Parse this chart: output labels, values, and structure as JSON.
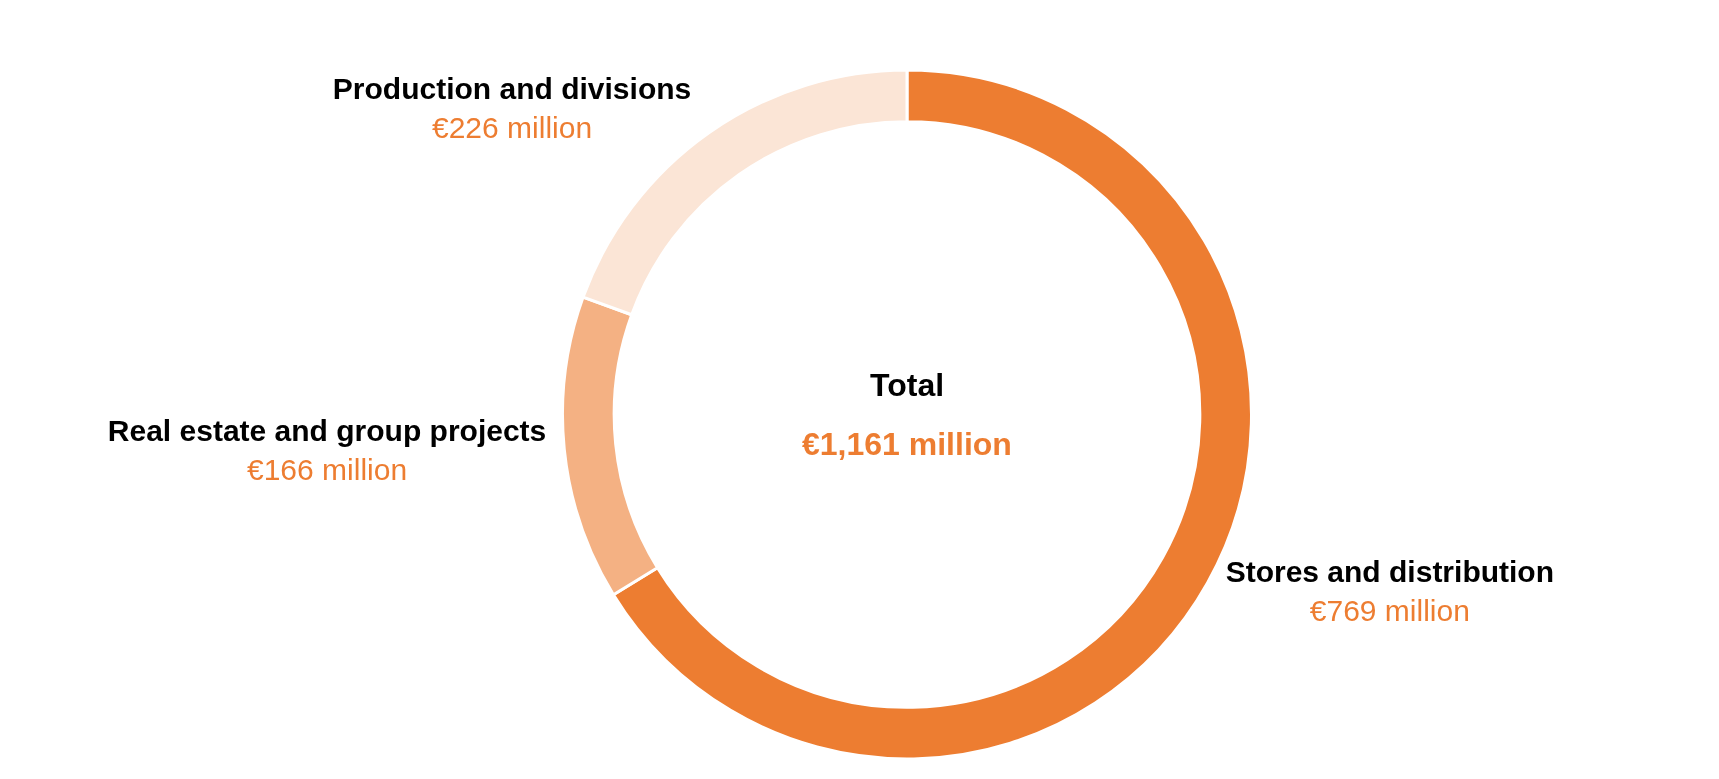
{
  "chart_data": {
    "type": "donut",
    "categories": [
      "Stores and distribution",
      "Real estate and group projects",
      "Production and divisions"
    ],
    "values": [
      769,
      166,
      226
    ],
    "value_labels": [
      "€769 million",
      "€166 million",
      "€226 million"
    ],
    "colors": [
      "#ed7d31",
      "#f4b183",
      "#fbe5d6"
    ],
    "annotations": [
      "Total",
      "€1,161 million"
    ],
    "legend": false
  }
}
